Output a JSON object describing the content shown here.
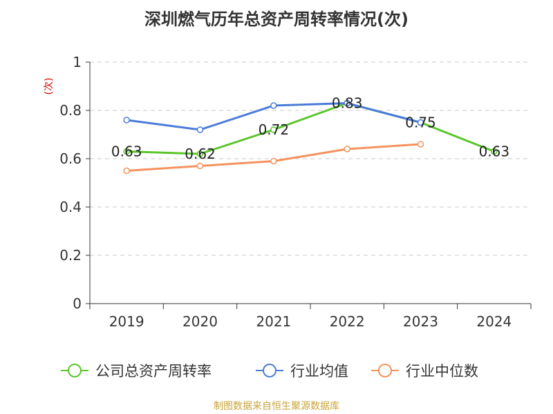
{
  "chart_data": {
    "type": "line",
    "title": "深圳燃气历年总资产周转率情况(次)",
    "ylabel": "(次)",
    "xlabel": "",
    "categories": [
      "2019",
      "2020",
      "2021",
      "2022",
      "2023",
      "2024"
    ],
    "ylim": [
      0,
      1
    ],
    "yticks": [
      "0",
      "0.2",
      "0.4",
      "0.6",
      "0.8",
      "1"
    ],
    "grid": true,
    "legend_position": "bottom",
    "series": [
      {
        "name": "公司总资产周转率",
        "color": "#5ac52b",
        "values": [
          0.63,
          0.62,
          0.72,
          0.83,
          0.75,
          0.63
        ],
        "labels": [
          "0.63",
          "0.62",
          "0.72",
          "0.83",
          "0.75",
          "0.63"
        ]
      },
      {
        "name": "行业均值",
        "color": "#4a7bd8",
        "values": [
          0.76,
          0.72,
          0.82,
          0.83,
          0.75,
          null
        ]
      },
      {
        "name": "行业中位数",
        "color": "#f4925d",
        "values": [
          0.55,
          0.57,
          0.59,
          0.64,
          0.66,
          null
        ]
      }
    ]
  },
  "footer": {
    "source": "制图数据来自恒生聚源数据库"
  }
}
